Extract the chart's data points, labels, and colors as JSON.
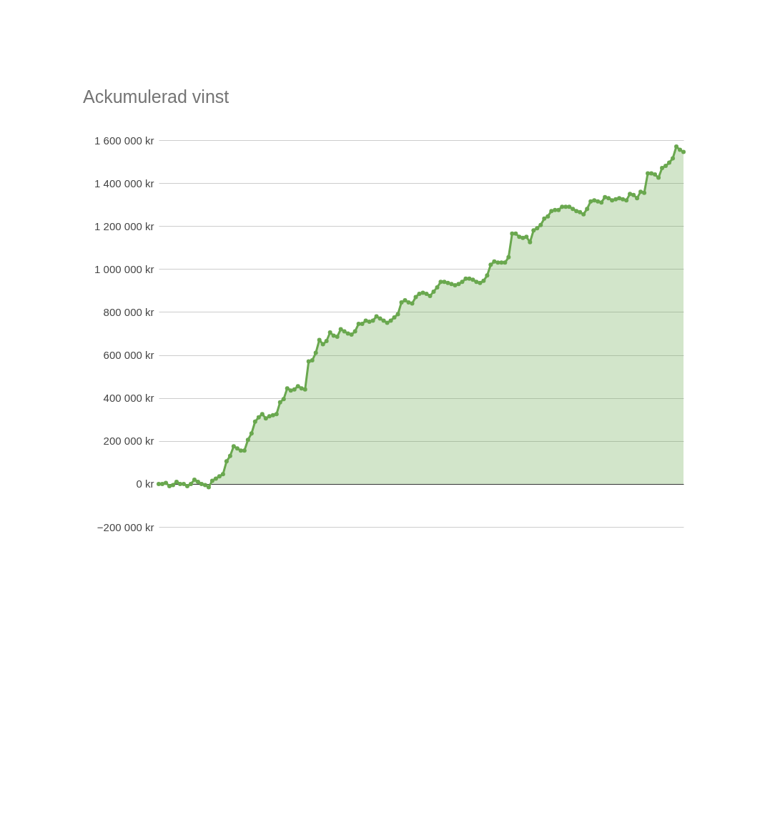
{
  "chart_data": {
    "type": "area",
    "title": "Ackumulerad vinst",
    "categories": [
      null,
      null,
      null,
      null,
      null,
      null,
      null,
      null,
      null,
      null,
      null,
      null,
      null,
      null,
      null,
      null,
      null,
      null,
      null,
      null,
      null,
      null,
      null,
      null,
      null,
      null,
      null,
      null,
      null,
      null,
      null,
      null,
      null,
      null,
      null,
      null,
      null,
      null,
      null,
      null,
      null,
      null,
      null,
      null,
      null,
      null,
      null,
      null,
      null,
      null,
      null,
      null,
      null,
      null,
      null,
      null,
      null,
      null,
      null,
      null,
      null,
      null,
      null,
      null,
      null,
      null,
      null,
      null,
      null,
      null,
      null,
      null,
      null,
      null,
      null,
      null,
      null,
      null,
      null,
      null,
      null,
      null,
      null,
      null,
      null,
      null,
      null,
      null,
      null,
      null,
      null,
      null,
      null,
      null,
      null,
      null,
      null,
      null,
      null,
      null,
      null,
      null,
      null,
      null,
      null,
      null,
      null,
      null,
      null,
      null,
      null,
      null,
      null,
      null,
      null,
      null,
      null,
      null,
      null,
      null,
      null,
      null,
      null,
      null,
      null,
      null,
      null,
      null,
      null,
      null,
      null,
      null,
      null,
      null,
      null,
      null,
      null,
      null,
      null,
      null,
      null,
      null,
      null,
      null,
      null,
      null,
      null,
      null
    ],
    "values": [
      0,
      0,
      5000,
      -10000,
      -5000,
      10000,
      0,
      0,
      -10000,
      0,
      20000,
      10000,
      0,
      -5000,
      -15000,
      15000,
      25000,
      35000,
      45000,
      105000,
      130000,
      175000,
      165000,
      155000,
      155000,
      205000,
      235000,
      290000,
      310000,
      325000,
      305000,
      315000,
      320000,
      325000,
      380000,
      395000,
      445000,
      435000,
      440000,
      455000,
      445000,
      440000,
      570000,
      575000,
      610000,
      670000,
      650000,
      665000,
      705000,
      690000,
      685000,
      720000,
      710000,
      700000,
      695000,
      710000,
      745000,
      745000,
      760000,
      755000,
      760000,
      780000,
      770000,
      760000,
      750000,
      760000,
      775000,
      790000,
      845000,
      855000,
      845000,
      840000,
      870000,
      885000,
      890000,
      885000,
      875000,
      895000,
      915000,
      940000,
      940000,
      935000,
      930000,
      925000,
      930000,
      940000,
      955000,
      955000,
      950000,
      940000,
      935000,
      945000,
      970000,
      1020000,
      1035000,
      1030000,
      1030000,
      1030000,
      1055000,
      1165000,
      1165000,
      1150000,
      1145000,
      1150000,
      1125000,
      1180000,
      1190000,
      1205000,
      1235000,
      1245000,
      1270000,
      1275000,
      1275000,
      1290000,
      1290000,
      1290000,
      1280000,
      1270000,
      1265000,
      1255000,
      1280000,
      1315000,
      1320000,
      1315000,
      1310000,
      1335000,
      1330000,
      1320000,
      1325000,
      1330000,
      1325000,
      1320000,
      1350000,
      1345000,
      1330000,
      1360000,
      1355000,
      1445000,
      1445000,
      1440000,
      1425000,
      1470000,
      1480000,
      1495000,
      1515000,
      1570000,
      1555000,
      1545000
    ],
    "color": "#6aa84f",
    "ylim": [
      -200000,
      1600000
    ],
    "yticks": [
      {
        "value": -200000,
        "label": "−200 000 kr"
      },
      {
        "value": 0,
        "label": "0 kr"
      },
      {
        "value": 200000,
        "label": "200 000 kr"
      },
      {
        "value": 400000,
        "label": "400 000 kr"
      },
      {
        "value": 600000,
        "label": "600 000 kr"
      },
      {
        "value": 800000,
        "label": "800 000 kr"
      },
      {
        "value": 1000000,
        "label": "1 000 000 kr"
      },
      {
        "value": 1200000,
        "label": "1 200 000 kr"
      },
      {
        "value": 1400000,
        "label": "1 400 000 kr"
      },
      {
        "value": 1600000,
        "label": "1 600 000 kr"
      }
    ],
    "grid": "y",
    "marker": "circle"
  }
}
